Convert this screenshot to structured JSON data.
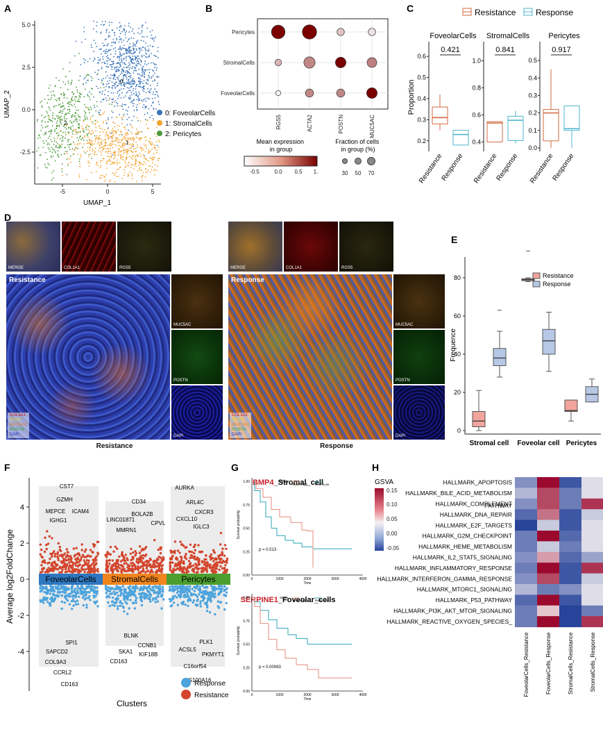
{
  "panels": {
    "A": {
      "label": "A",
      "xlabel": "UMAP_1",
      "ylabel": "UMAP_2",
      "xticks": [
        "-5",
        "0",
        "5"
      ],
      "yticks": [
        "5.0",
        "2.5",
        "0.0",
        "-2.5"
      ],
      "legend": [
        {
          "text": "0: FoveolarCells",
          "color": "#3b73b9"
        },
        {
          "text": "1: StromalCells",
          "color": "#f0a22c"
        },
        {
          "text": "2: Pericytes",
          "color": "#4c9a3a"
        }
      ],
      "cluster_numbers": [
        "0",
        "1",
        "2"
      ]
    },
    "B": {
      "label": "B",
      "rows": [
        "Pericytes",
        "StromalCells",
        "FoveolarCells"
      ],
      "cols": [
        "RGS5",
        "ACTA2",
        "POSTN",
        "MUC5AC"
      ],
      "legend_expr_title": "Mean expression\nin group",
      "legend_expr_ticks": [
        "-0.5",
        "0.0",
        "0.5",
        "1."
      ],
      "legend_frac_title": "Fraction of cells\nin group (%)",
      "legend_frac_ticks": [
        "30",
        "50",
        "70"
      ],
      "dots": [
        [
          {
            "v": 1.0,
            "f": 70
          },
          {
            "v": 1.0,
            "f": 75
          },
          {
            "v": -0.3,
            "f": 30
          },
          {
            "v": -0.5,
            "f": 30
          }
        ],
        [
          {
            "v": -0.2,
            "f": 25
          },
          {
            "v": 0.1,
            "f": 55
          },
          {
            "v": 1.0,
            "f": 50
          },
          {
            "v": 0.15,
            "f": 45
          }
        ],
        [
          {
            "v": -0.6,
            "f": 15
          },
          {
            "v": 0.1,
            "f": 35
          },
          {
            "v": 0.1,
            "f": 35
          },
          {
            "v": 1.0,
            "f": 50
          }
        ]
      ]
    },
    "C": {
      "label": "C",
      "legend": [
        "Resistance",
        "Response"
      ],
      "ylabel": "Proportion",
      "xticks": [
        "Resistance",
        "Response"
      ],
      "subplots": [
        {
          "title": "FoveolarCells",
          "pval": "0.421",
          "yticks": [
            "0.2",
            "0.3",
            "0.4",
            "0.5",
            "0.6"
          ],
          "ymin": 0.15,
          "ymax": 0.63,
          "boxes": [
            {
              "q1": 0.28,
              "med": 0.31,
              "q3": 0.36,
              "lo": 0.25,
              "hi": 0.42
            },
            {
              "q1": 0.18,
              "med": 0.23,
              "q3": 0.25,
              "lo": 0.18,
              "hi": 0.25
            }
          ]
        },
        {
          "title": "StromalCells",
          "pval": "0.841",
          "yticks": [
            "0.4",
            "0.6",
            "0.8",
            "1.0"
          ],
          "ymin": 0.33,
          "ymax": 1.08,
          "boxes": [
            {
              "q1": 0.4,
              "med": 0.54,
              "q3": 0.55,
              "lo": 0.4,
              "hi": 0.55
            },
            {
              "q1": 0.41,
              "med": 0.56,
              "q3": 0.59,
              "lo": 0.39,
              "hi": 0.63
            }
          ]
        },
        {
          "title": "Pericytes",
          "pval": "0.917",
          "yticks": [
            "0.0",
            "0.1",
            "0.2",
            "0.3",
            "0.4",
            "0.5"
          ],
          "ymin": -0.02,
          "ymax": 0.56,
          "boxes": [
            {
              "q1": 0.04,
              "med": 0.2,
              "q3": 0.22,
              "lo": 0.0,
              "hi": 0.45
            },
            {
              "q1": 0.1,
              "med": 0.11,
              "q3": 0.24,
              "lo": 0.0,
              "hi": 0.24
            }
          ]
        }
      ]
    },
    "D": {
      "label": "D",
      "left": {
        "small": [
          "MERGE",
          "COL1A1",
          "RGS5"
        ],
        "main_label": "Resistance",
        "side": [
          "MUC5AC",
          "POSTN",
          "DAPI"
        ],
        "legend": [
          "COL1A1",
          "RGS5",
          "MUC5AC",
          "POSTN",
          "DAPI"
        ],
        "caption": "Resistance"
      },
      "right": {
        "small": [
          "MERGE",
          "COL1A1",
          "RGS5"
        ],
        "main_label": "Response",
        "side": [
          "MUC5AC",
          "POSTN",
          "DAPI"
        ],
        "legend": [
          "COL1A1",
          "RGS5",
          "MUC5AC",
          "POSTN",
          "DAPI"
        ],
        "caption": "Response"
      }
    },
    "E": {
      "label": "E",
      "legend": [
        "Resistance",
        "Response"
      ],
      "ylabel": "Frequence",
      "yticks": [
        "0",
        "20",
        "40",
        "60",
        "80"
      ],
      "categories": [
        "Stromal cell",
        "Foveolar cell",
        "Pericytes"
      ],
      "boxes": [
        {
          "res": {
            "lo": 0,
            "q1": 2,
            "med": 5,
            "q3": 10,
            "hi": 21
          },
          "resp": {
            "lo": 28,
            "q1": 34,
            "med": 38,
            "q3": 43,
            "hi": 52,
            "out": 63
          }
        },
        {
          "res": {
            "lo": 78,
            "q1": 78.5,
            "med": 79,
            "q3": 79.5,
            "hi": 80,
            "out": 94
          },
          "resp": {
            "lo": 31,
            "q1": 40,
            "med": 47,
            "q3": 53,
            "hi": 62
          }
        },
        {
          "res": {
            "lo": 5,
            "q1": 10,
            "med": 10.5,
            "q3": 16,
            "hi": 16
          },
          "resp": {
            "lo": 15,
            "q1": 15,
            "med": 19,
            "q3": 23,
            "hi": 27
          }
        }
      ]
    },
    "F": {
      "label": "F",
      "ylabel": "Average log2FoldChange",
      "xlabel": "Clusters",
      "yticks": [
        "4",
        "2",
        "0",
        "-2",
        "-4"
      ],
      "clusters": [
        {
          "name": "FoveolarCells",
          "color": "#2f77c0"
        },
        {
          "name": "StromalCells",
          "color": "#f0851e"
        },
        {
          "name": "Pericytes",
          "color": "#4c9e2e"
        }
      ],
      "genes_up": [
        [
          "CST7",
          "GZMH",
          "MEPCE",
          "ICAM4",
          "IGHG1"
        ],
        [
          "CD34",
          "BOLA2B",
          "LINC01871",
          "CPVL",
          "MMRN1"
        ],
        [
          "AURKA",
          "ARL4C",
          "CXCR3",
          "CXCL10",
          "IGLC3"
        ]
      ],
      "genes_down": [
        [
          "SPI1",
          "SAPCD2",
          "COL9A3",
          "CCRL2",
          "CD163"
        ],
        [
          "BLNK",
          "CCNB1",
          "SKA1",
          "KIF18B",
          "CD163"
        ],
        [
          "PLK1",
          "ACSL5",
          "PKMYT1",
          "C16orf54",
          "S100A16"
        ]
      ],
      "legend": [
        {
          "text": "Response",
          "color": "#4ca3dd"
        },
        {
          "text": "Resistance",
          "color": "#d3452c"
        }
      ]
    },
    "G": {
      "label": "G",
      "plots": [
        {
          "gene": "BMP4",
          "suffix": "_Stromal_cell",
          "pval": "p = 0.013",
          "strata": "Strata",
          "high": "level=High",
          "low": "level=Low",
          "xlabel": "Time",
          "ylabel": "Survival probability",
          "yticks": [
            "1.00",
            "0.75",
            "0.50",
            "0.25",
            "0.00"
          ],
          "xticks": [
            "0",
            "1000",
            "2000",
            "3000",
            "4000"
          ]
        },
        {
          "gene": "SERPINE1",
          "suffix": "_Foveolar_cells",
          "pval": "p = 0.00063",
          "strata": "Strata",
          "high": "level=High",
          "low": "level=Low",
          "xlabel": "Time",
          "ylabel": "Survival probability",
          "yticks": [
            "1.00",
            "0.75",
            "0.50",
            "0.25",
            "0.00"
          ],
          "xticks": [
            "0",
            "1000",
            "2000",
            "3000",
            "4000"
          ]
        }
      ]
    },
    "H": {
      "label": "H",
      "legend_title": "GSVA",
      "legend_ticks": [
        "0.15",
        "0.10",
        "0.05",
        "0.00",
        "-0.05"
      ],
      "rows": [
        "HALLMARK_APOPTOSIS",
        "HALLMARK_BILE_ACID_METABOLISM",
        "HALLMARK_COMPLEMENT",
        "HALLMARK_DNA_REPAIR",
        "HALLMARK_E2F_TARGETS",
        "HALLMARK_G2M_CHECKPOINT",
        "HALLMARK_HEME_METABOLISM",
        "HALLMARK_IL2_STAT5_SIGNALING",
        "HALLMARK_INFLAMMATORY_RESPONSE",
        "HALLMARK_INTERFERON_GAMMA_RESPONSE",
        "HALLMARK_MTORC1_SIGNALING",
        "HALLMARK_P53_PATHWAY",
        "HALLMARK_PI3K_AKT_MTOR_SIGNALING",
        "HALLMARK_REACTIVE_OXYGEN_SPECIES_"
      ],
      "row_extra": "PATHWAY",
      "cols": [
        "FoveolarCells_Resistance",
        "FoveolarCells_Response",
        "StromalCells_Resistance",
        "StromalCells_Response"
      ],
      "values": [
        [
          -0.01,
          0.15,
          -0.04,
          0.03
        ],
        [
          0.01,
          0.12,
          -0.02,
          0.03
        ],
        [
          -0.01,
          0.12,
          -0.02,
          0.13
        ],
        [
          -0.03,
          0.1,
          -0.04,
          0.02
        ],
        [
          -0.05,
          0.02,
          -0.04,
          0.03
        ],
        [
          -0.02,
          0.15,
          -0.03,
          0.03
        ],
        [
          -0.02,
          0.02,
          -0.02,
          0.03
        ],
        [
          -0.01,
          0.08,
          -0.03,
          0.0
        ],
        [
          -0.02,
          0.15,
          -0.04,
          0.13
        ],
        [
          -0.01,
          0.12,
          -0.04,
          0.02
        ],
        [
          0.01,
          -0.02,
          -0.01,
          0.03
        ],
        [
          -0.03,
          0.15,
          -0.04,
          0.03
        ],
        [
          -0.02,
          0.06,
          -0.05,
          -0.02
        ],
        [
          -0.02,
          0.15,
          -0.05,
          0.13
        ]
      ]
    }
  }
}
